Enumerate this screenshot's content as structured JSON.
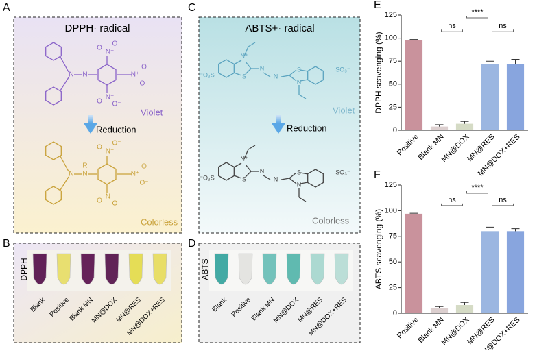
{
  "panels": {
    "A": {
      "label": "A",
      "title": "DPPH· radical",
      "top_color": "Violet",
      "arrow": "Reduction",
      "bottom_color": "Colorless",
      "top_atoms": [
        "N",
        "N",
        "N⁺",
        "O",
        "O⁻",
        "N⁺",
        "O",
        "O⁻",
        "N⁺",
        "O",
        "O⁻"
      ],
      "bottom_atoms": [
        "N",
        "N",
        "R",
        "N⁺",
        "O",
        "O⁻",
        "N⁺",
        "O",
        "O⁻",
        "N⁺",
        "O",
        "O⁻"
      ],
      "top_ink": "#8a63c9",
      "bottom_ink": "#c9a23a"
    },
    "C": {
      "label": "C",
      "title": "ABTS+· radical",
      "top_color": "Violet",
      "arrow": "Reduction",
      "bottom_color": "Colorless",
      "top_atoms": [
        "N⁺",
        "S",
        "N",
        "N",
        "S",
        "N",
        "⁻O₃S",
        "SO₃⁻"
      ],
      "bottom_atoms": [
        "N⁺",
        "S",
        "N",
        "N",
        "S",
        "N",
        "⁻O₃S",
        "SO₃⁻"
      ],
      "top_ink": "#5aa3bf",
      "bottom_ink": "#444444"
    },
    "B": {
      "label": "B",
      "reagent": "DPPH",
      "samples": [
        "Blank",
        "Positive",
        "Blank MN",
        "MN@DOX",
        "MN@RES",
        "MN@DOX+RES"
      ],
      "tube_colors": [
        "#5a1650",
        "#e8df6a",
        "#5e1752",
        "#5a1a50",
        "#e5dc4e",
        "#e8dd60"
      ]
    },
    "D": {
      "label": "D",
      "reagent": "ABTS",
      "samples": [
        "Blank",
        "Positive",
        "Blank MN",
        "MN@DOX",
        "MN@RES",
        "MN@DOX+RES"
      ],
      "tube_colors": [
        "#3aa6a0",
        "#e3e3e0",
        "#6cc0b8",
        "#58b7ad",
        "#a9d8d0",
        "#b8ddd6"
      ]
    }
  },
  "chart_data": [
    {
      "type": "bar",
      "panel": "E",
      "ylabel": "DPPH scavenging (%)",
      "categories": [
        "Positive",
        "Blank MN",
        "MN@DOX",
        "MN@RES",
        "MN@DOX+RES"
      ],
      "values": [
        98,
        4,
        7,
        72,
        72
      ],
      "errors": [
        0.5,
        2,
        2.5,
        3,
        5
      ],
      "colors": [
        "#c9929c",
        "#dccfcf",
        "#d5dbc5",
        "#9bb6e1",
        "#88a5de"
      ],
      "ylim": [
        0,
        125
      ],
      "yticks": [
        0,
        25,
        50,
        75,
        100,
        125
      ],
      "annotations": [
        {
          "label": "ns",
          "from": 1,
          "to": 2,
          "y": 107
        },
        {
          "label": "****",
          "from": 2,
          "to": 3,
          "y": 122
        },
        {
          "label": "ns",
          "from": 3,
          "to": 4,
          "y": 107
        }
      ]
    },
    {
      "type": "bar",
      "panel": "F",
      "ylabel": "ABTS scavenging (%)",
      "categories": [
        "Positive",
        "Blank MN",
        "MN@DOX",
        "MN@RES",
        "MN@DOX+RES"
      ],
      "values": [
        97,
        5,
        8,
        80,
        80
      ],
      "errors": [
        0.5,
        1.5,
        2.5,
        4,
        2.5
      ],
      "colors": [
        "#c9929c",
        "#dccfcf",
        "#d5dbc5",
        "#9bb6e1",
        "#88a5de"
      ],
      "ylim": [
        0,
        125
      ],
      "yticks": [
        0,
        25,
        50,
        75,
        100,
        125
      ],
      "annotations": [
        {
          "label": "ns",
          "from": 1,
          "to": 2,
          "y": 105
        },
        {
          "label": "****",
          "from": 2,
          "to": 3,
          "y": 117
        },
        {
          "label": "ns",
          "from": 3,
          "to": 4,
          "y": 105
        }
      ]
    }
  ]
}
